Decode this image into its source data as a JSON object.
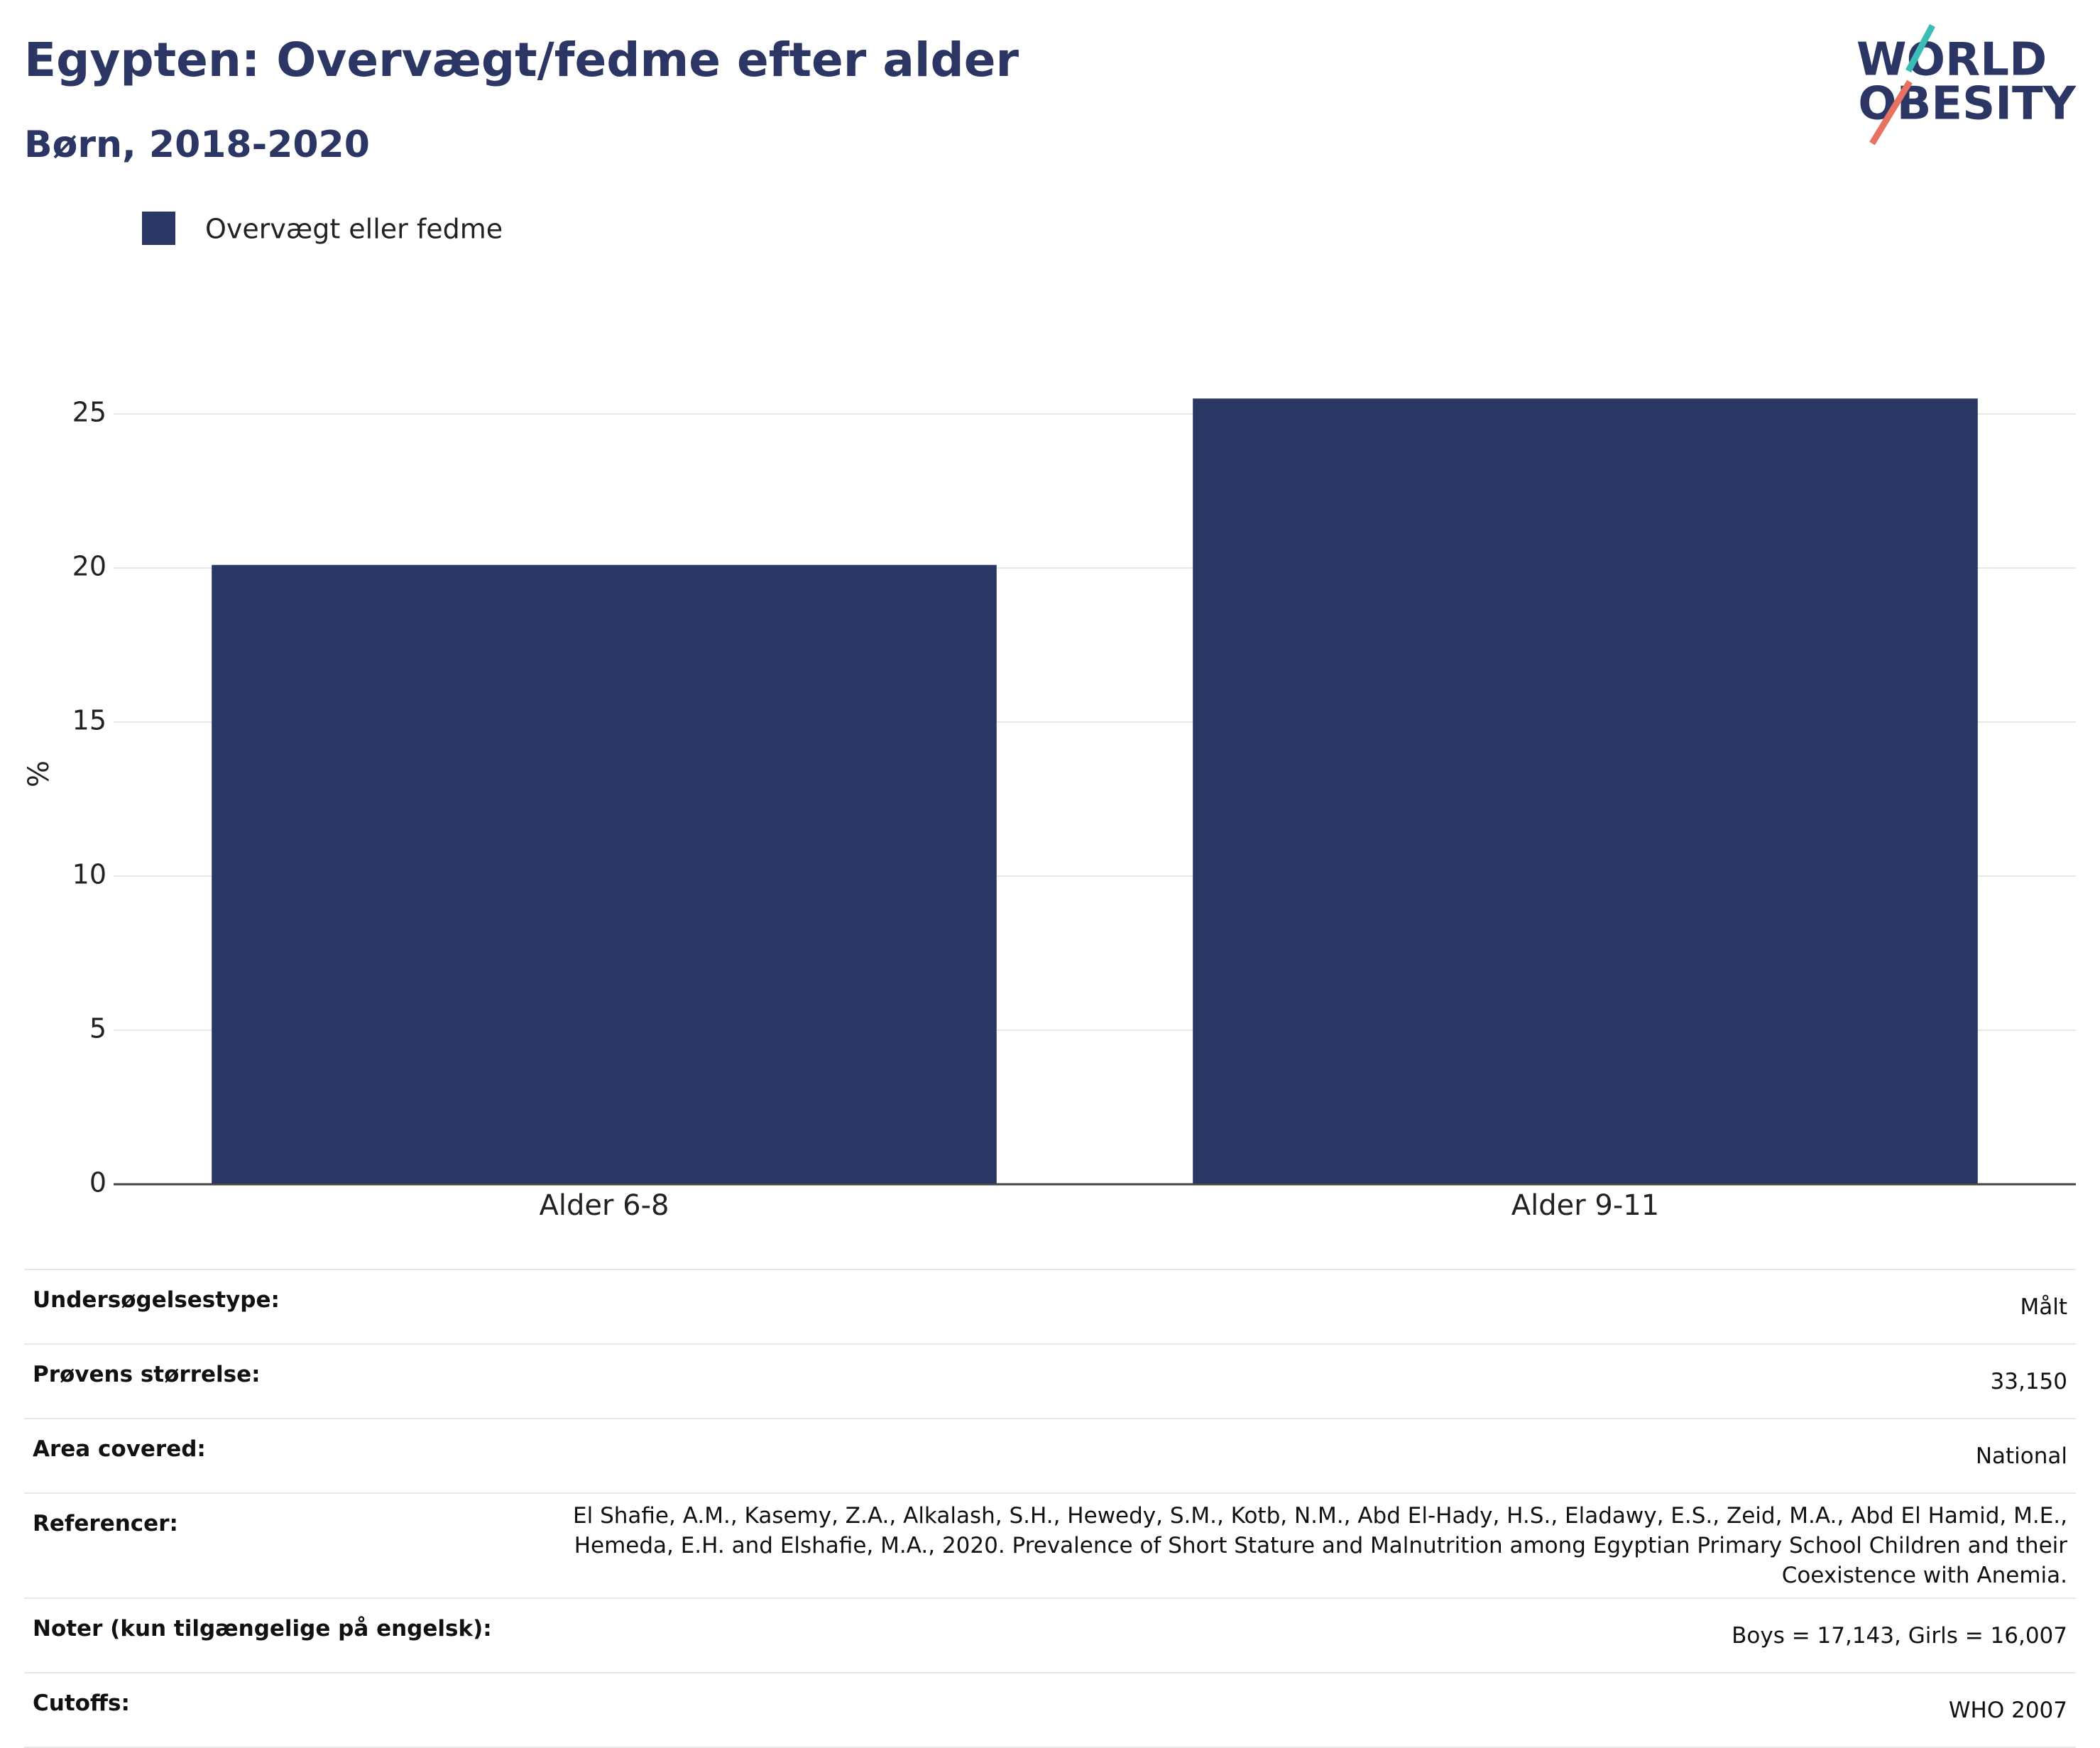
{
  "chart_data": {
    "type": "bar",
    "title": "Egypten: Overvægt/fedme efter alder",
    "subtitle": "Børn, 2018-2020",
    "y_label": "%",
    "categories": [
      "Alder 6-8",
      "Alder 9-11"
    ],
    "series": [
      {
        "name": "Overvægt eller fedme",
        "color": "#2a3663",
        "values": [
          20.1,
          25.5
        ]
      }
    ],
    "ylim": [
      0,
      26.8
    ],
    "yticks": [
      0,
      5,
      10,
      15,
      20,
      25
    ],
    "grid": true
  },
  "logo": {
    "line1": "WORLD",
    "line2": "OBESITY"
  },
  "table": {
    "rows": [
      [
        "Undersøgelsestype:",
        "Målt"
      ],
      [
        "Prøvens størrelse:",
        "33,150"
      ],
      [
        "Area covered:",
        "National"
      ],
      [
        "Referencer:",
        "El Shafie, A.M., Kasemy, Z.A., Alkalash, S.H., Hewedy, S.M., Kotb, N.M., Abd El-Hady, H.S., Eladawy, E.S., Zeid, M.A., Abd El Hamid, M.E., Hemeda, E.H. and Elshafie, M.A., 2020. Prevalence of Short Stature and Malnutrition among Egyptian Primary School Children and their Coexistence with Anemia."
      ],
      [
        "Noter (kun tilgængelige på engelsk):",
        "Boys = 17,143, Girls = 16,007"
      ],
      [
        "Cutoffs:",
        "WHO 2007"
      ]
    ]
  }
}
